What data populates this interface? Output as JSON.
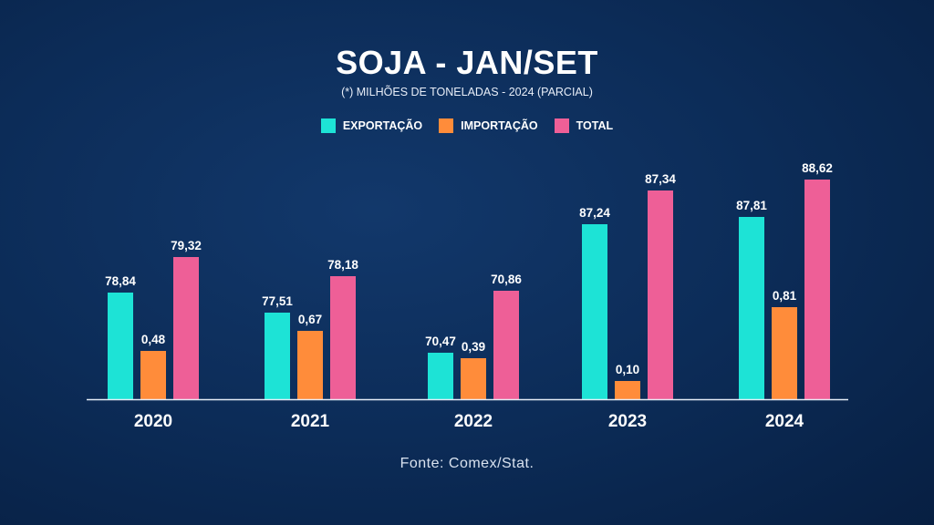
{
  "chart_data": {
    "type": "bar",
    "title": "SOJA - JAN/SET",
    "subtitle": "(*) MILHÕES DE TONELADAS - 2024 (PARCIAL)",
    "categories": [
      "2020",
      "2021",
      "2022",
      "2023",
      "2024"
    ],
    "series": [
      {
        "name": "EXPORTAÇÃO",
        "color": "#1de3d6",
        "values": [
          78.84,
          77.51,
          70.47,
          87.24,
          87.81
        ],
        "labels": [
          "78,84",
          "77,51",
          "70,47",
          "87,24",
          "87,81"
        ]
      },
      {
        "name": "IMPORTAÇÃO",
        "color": "#ff8c3a",
        "values": [
          0.48,
          0.67,
          0.39,
          0.1,
          0.81
        ],
        "labels": [
          "0,48",
          "0,67",
          "0,39",
          "0,10",
          "0,81"
        ]
      },
      {
        "name": "TOTAL",
        "color": "#ee5f97",
        "values": [
          79.32,
          78.18,
          70.86,
          87.34,
          88.62
        ],
        "labels": [
          "79,32",
          "78,18",
          "70,86",
          "87,34",
          "88,62"
        ]
      }
    ],
    "legend": "top-center",
    "grid": false,
    "source": "Fonte: Comex/Stat."
  }
}
